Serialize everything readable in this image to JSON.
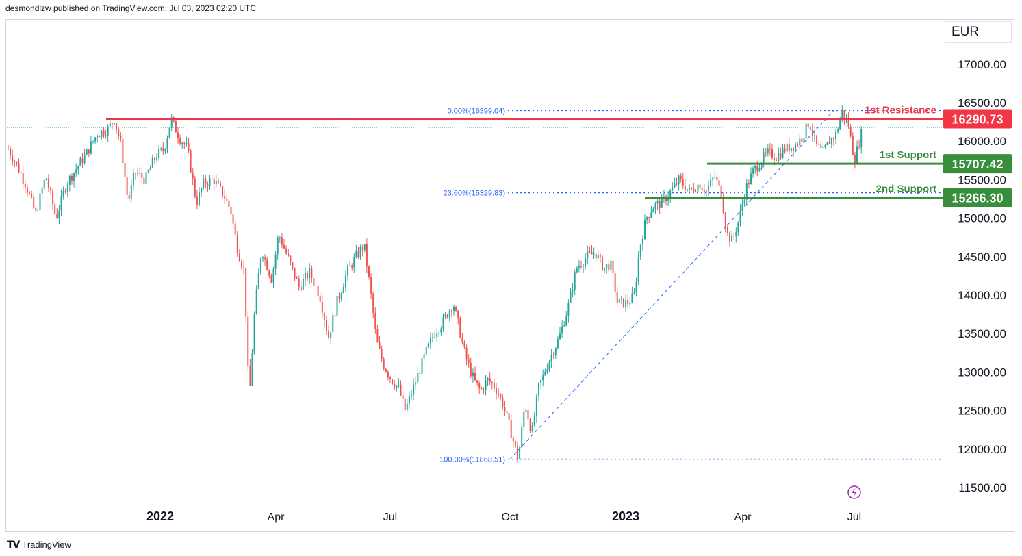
{
  "header": {
    "publisher_text": "desmondlzw published on TradingView.com, Jul 03, 2023 02:20 UTC"
  },
  "currency_label": "EUR",
  "footer": {
    "brand": "TradingView",
    "logo_icon": "tradingview-logo-icon"
  },
  "colors": {
    "up": "#26a69a",
    "down": "#ef5350",
    "resistance": "#f23645",
    "support": "#388e3c",
    "fib": "#2962ff",
    "axis_text": "#131722",
    "flash_icon": "#9c27b0"
  },
  "chart_data": {
    "type": "line",
    "title": "",
    "ylabel": "",
    "ylim": [
      11500,
      17000
    ],
    "y_ticks": [
      "11500.00",
      "12000.00",
      "12500.00",
      "13000.00",
      "13500.00",
      "14000.00",
      "14500.00",
      "15000.00",
      "15500.00",
      "16000.00",
      "16500.00",
      "17000.00"
    ],
    "x_ticks": [
      "2022",
      "Apr",
      "Jul",
      "Oct",
      "2023",
      "Apr",
      "Jul"
    ],
    "grid": false,
    "series": [
      {
        "values": [
          [
            0,
            15900
          ],
          [
            12,
            15700
          ],
          [
            25,
            15450
          ],
          [
            40,
            15050
          ],
          [
            55,
            15550
          ],
          [
            70,
            15000
          ],
          [
            85,
            15450
          ],
          [
            100,
            15650
          ],
          [
            115,
            15850
          ],
          [
            130,
            16100
          ],
          [
            145,
            16150
          ],
          [
            155,
            16290
          ],
          [
            165,
            15950
          ],
          [
            175,
            15200
          ],
          [
            185,
            15600
          ],
          [
            200,
            15500
          ],
          [
            215,
            15800
          ],
          [
            228,
            15900
          ],
          [
            238,
            16290
          ],
          [
            250,
            16050
          ],
          [
            262,
            15900
          ],
          [
            275,
            15200
          ],
          [
            285,
            15450
          ],
          [
            300,
            15500
          ],
          [
            315,
            15300
          ],
          [
            325,
            15100
          ],
          [
            335,
            14600
          ],
          [
            345,
            14300
          ],
          [
            352,
            12600
          ],
          [
            360,
            13800
          ],
          [
            370,
            14600
          ],
          [
            385,
            14200
          ],
          [
            395,
            14800
          ],
          [
            410,
            14450
          ],
          [
            425,
            14100
          ],
          [
            440,
            14300
          ],
          [
            455,
            14000
          ],
          [
            468,
            13450
          ],
          [
            480,
            13900
          ],
          [
            495,
            14300
          ],
          [
            508,
            14500
          ],
          [
            520,
            14650
          ],
          [
            530,
            14000
          ],
          [
            538,
            13400
          ],
          [
            548,
            13100
          ],
          [
            560,
            12900
          ],
          [
            570,
            12800
          ],
          [
            580,
            12500
          ],
          [
            590,
            12750
          ],
          [
            600,
            13000
          ],
          [
            610,
            13250
          ],
          [
            622,
            13500
          ],
          [
            635,
            13650
          ],
          [
            650,
            13900
          ],
          [
            658,
            13600
          ],
          [
            668,
            13200
          ],
          [
            680,
            12900
          ],
          [
            690,
            12750
          ],
          [
            700,
            12900
          ],
          [
            712,
            12800
          ],
          [
            722,
            12600
          ],
          [
            732,
            12300
          ],
          [
            745,
            11870
          ],
          [
            755,
            12600
          ],
          [
            765,
            12200
          ],
          [
            775,
            12800
          ],
          [
            790,
            13150
          ],
          [
            805,
            13450
          ],
          [
            818,
            13850
          ],
          [
            830,
            14350
          ],
          [
            845,
            14500
          ],
          [
            858,
            14550
          ],
          [
            870,
            14350
          ],
          [
            880,
            14400
          ],
          [
            890,
            13900
          ],
          [
            905,
            13900
          ],
          [
            915,
            14000
          ],
          [
            922,
            14600
          ],
          [
            932,
            15000
          ],
          [
            942,
            15150
          ],
          [
            955,
            15200
          ],
          [
            968,
            15350
          ],
          [
            980,
            15500
          ],
          [
            995,
            15350
          ],
          [
            1010,
            15450
          ],
          [
            1020,
            15350
          ],
          [
            1032,
            15550
          ],
          [
            1042,
            15300
          ],
          [
            1050,
            14800
          ],
          [
            1058,
            14700
          ],
          [
            1068,
            15000
          ],
          [
            1078,
            15400
          ],
          [
            1088,
            15600
          ],
          [
            1100,
            15750
          ],
          [
            1110,
            15850
          ],
          [
            1122,
            15800
          ],
          [
            1135,
            15900
          ],
          [
            1150,
            15950
          ],
          [
            1160,
            16050
          ],
          [
            1170,
            16250
          ],
          [
            1180,
            15950
          ],
          [
            1190,
            15850
          ],
          [
            1200,
            16000
          ],
          [
            1210,
            16100
          ],
          [
            1218,
            16390
          ],
          [
            1228,
            16200
          ],
          [
            1236,
            15750
          ],
          [
            1245,
            16050
          ],
          [
            1248,
            16180
          ]
        ]
      }
    ],
    "levels": [
      {
        "label": "1st Resistance",
        "value": 16290.73,
        "value_text": "16290.73",
        "kind": "resistance"
      },
      {
        "label": "1st Support",
        "value": 15707.42,
        "value_text": "15707.42",
        "kind": "support"
      },
      {
        "label": "2nd Support",
        "value": 15266.3,
        "value_text": "15266.30",
        "kind": "support"
      }
    ],
    "fibonacci": [
      {
        "label": "0.00%(16399.04)",
        "value": 16399.04
      },
      {
        "label": "23.60%(15329.83)",
        "value": 15329.83
      },
      {
        "label": "100.00%(11868.51)",
        "value": 11868.51
      }
    ],
    "last_price": 16180
  }
}
